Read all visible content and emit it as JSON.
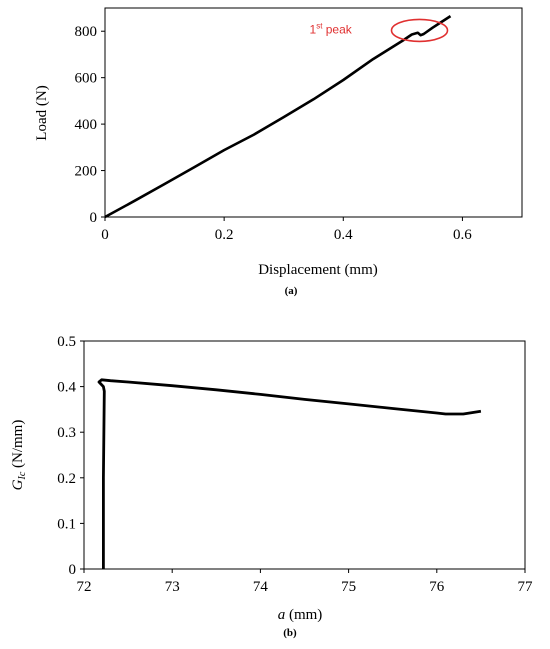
{
  "chart_data": [
    {
      "type": "line",
      "panel_label": "(a)",
      "xlabel": "Displacement (mm)",
      "ylabel": "Load (N)",
      "xlim": [
        0,
        0.7
      ],
      "ylim": [
        0,
        900
      ],
      "xticks": [
        0,
        0.2,
        0.4,
        0.6
      ],
      "xtick_labels": [
        "0",
        "0.2",
        "0.4",
        "0.6"
      ],
      "yticks": [
        0,
        200,
        400,
        600,
        800
      ],
      "ytick_labels": [
        "0",
        "200",
        "400",
        "600",
        "800"
      ],
      "grid": false,
      "annotation": {
        "text": "1",
        "superscript": "st",
        "suffix": " peak",
        "x": 0.528,
        "y": 795,
        "color": "#e03030"
      },
      "series": [
        {
          "x": [
            0,
            0.05,
            0.1,
            0.15,
            0.2,
            0.25,
            0.3,
            0.35,
            0.4,
            0.45,
            0.5,
            0.515,
            0.525,
            0.53,
            0.535,
            0.55,
            0.565,
            0.58
          ],
          "y": [
            0,
            70,
            142,
            215,
            288,
            355,
            430,
            507,
            590,
            680,
            760,
            786,
            793,
            783,
            788,
            815,
            840,
            865
          ]
        }
      ]
    },
    {
      "type": "line",
      "panel_label": "(b)",
      "xlabel_italic": "a",
      "xlabel_rest": " (mm)",
      "ylabel_main": "G",
      "ylabel_sub": "Ic",
      "ylabel_rest": " (N/mm)",
      "xlim": [
        72,
        77
      ],
      "ylim": [
        0,
        0.5
      ],
      "xticks": [
        72,
        73,
        74,
        75,
        76,
        77
      ],
      "xtick_labels": [
        "72",
        "73",
        "74",
        "75",
        "76",
        "77"
      ],
      "yticks": [
        0,
        0.1,
        0.2,
        0.3,
        0.4,
        0.5
      ],
      "ytick_labels": [
        "0",
        "0.1",
        "0.2",
        "0.3",
        "0.4",
        "0.5"
      ],
      "grid": false,
      "series": [
        {
          "x": [
            72.22,
            72.22,
            72.23,
            72.22,
            72.17,
            72.2,
            72.3,
            72.5,
            73,
            73.5,
            74,
            74.5,
            75,
            75.5,
            76,
            76.1,
            76.3,
            76.4,
            76.5
          ],
          "y": [
            0,
            0.2,
            0.39,
            0.4,
            0.41,
            0.415,
            0.413,
            0.41,
            0.402,
            0.393,
            0.383,
            0.372,
            0.362,
            0.352,
            0.342,
            0.34,
            0.34,
            0.343,
            0.346
          ]
        }
      ]
    }
  ]
}
